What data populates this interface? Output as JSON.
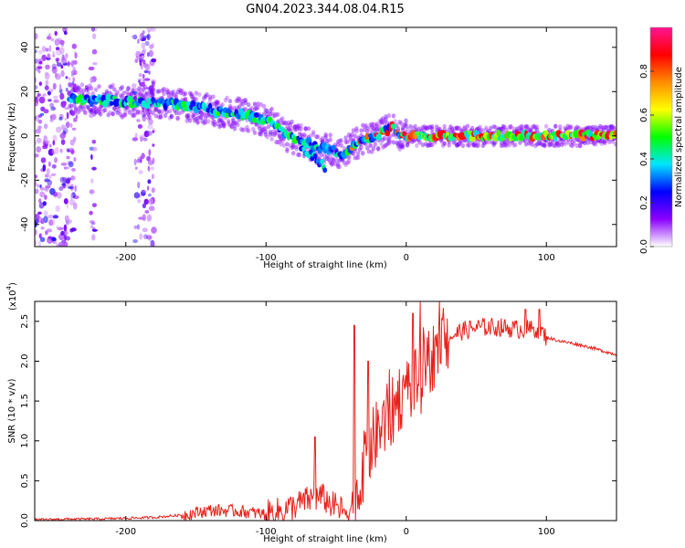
{
  "figure_title": "GN04.2023.344.08.04.R15",
  "chart_data": [
    {
      "type": "heatmap",
      "xlabel": "Height of straight line (km)",
      "ylabel": "Frequency (Hz)",
      "xlim": [
        -265,
        150
      ],
      "ylim": [
        -50,
        49
      ],
      "x_ticks": [
        -200,
        -100,
        0,
        100
      ],
      "x_tick_labels": [
        "-200",
        "-100",
        "0",
        "100"
      ],
      "y_ticks": [
        -40,
        -20,
        0,
        20,
        40
      ],
      "y_tick_labels": [
        "-40",
        "-20",
        "0",
        "20",
        "40"
      ],
      "colorbar": {
        "label": "Normalized spectral amplitude",
        "range": [
          0,
          1
        ],
        "ticks": [
          0.0,
          0.2,
          0.4,
          0.6,
          0.8
        ],
        "tick_labels": [
          "0.0",
          "0.2",
          "0.4",
          "0.6",
          "0.8"
        ],
        "colormap": [
          "#ffffff",
          "#8b00ff",
          "#0000ff",
          "#00e5ff",
          "#00ff00",
          "#ffff00",
          "#ff8c00",
          "#ff0000",
          "#ff1493"
        ]
      },
      "ridge": {
        "x": [
          -240,
          -225,
          -210,
          -195,
          -180,
          -165,
          -150,
          -135,
          -120,
          -105,
          -95,
          -85,
          -75,
          -65,
          -55,
          -45,
          -35,
          -25,
          -15,
          -10,
          -5,
          0,
          20,
          60,
          100,
          150
        ],
        "y": [
          17,
          16,
          16,
          15,
          15,
          14,
          13,
          11,
          10,
          8,
          5,
          0,
          -2,
          -5,
          -6,
          -8,
          -3,
          -1,
          2,
          4,
          1,
          0,
          0,
          0,
          0,
          0
        ],
        "branch_x": [
          -75,
          -65,
          -58
        ],
        "branch_y": [
          -6,
          -10,
          -14
        ]
      },
      "noise_bands_x": [
        [
          -265,
          -235
        ],
        [
          -225,
          -222
        ],
        [
          -195,
          -180
        ]
      ]
    },
    {
      "type": "line",
      "xlabel": "Height of straight line (km)",
      "ylabel": "SNR (10 * v/v)",
      "y_multiplier_label": "(x10",
      "y_multiplier_exponent": "4",
      "y_multiplier_suffix": ")",
      "xlim": [
        -265,
        150
      ],
      "ylim": [
        0,
        2.75
      ],
      "x_ticks": [
        -200,
        -100,
        0,
        100
      ],
      "x_tick_labels": [
        "-200",
        "-100",
        "0",
        "100"
      ],
      "y_ticks": [
        0,
        0.5,
        1.0,
        1.5,
        2.0,
        2.5
      ],
      "y_tick_labels": [
        "0.0",
        "0.5",
        "1.0",
        "1.5",
        "2.0",
        "2.5"
      ],
      "series": [
        {
          "color": "#e8201a",
          "x": [
            -265,
            -240,
            -220,
            -200,
            -180,
            -160,
            -140,
            -120,
            -100,
            -90,
            -80,
            -70,
            -60,
            -55,
            -50,
            -45,
            -40,
            -35,
            -30,
            -25,
            -20,
            -15,
            -10,
            -5,
            0,
            5,
            10,
            15,
            20,
            25,
            30,
            40,
            50,
            60,
            70,
            80,
            90,
            95,
            100,
            110,
            120,
            130,
            140,
            150
          ],
          "y": [
            0.01,
            0.02,
            0.02,
            0.03,
            0.04,
            0.07,
            0.13,
            0.12,
            0.08,
            0.12,
            0.18,
            0.26,
            0.3,
            0.22,
            0.17,
            0.12,
            0.15,
            0.27,
            0.6,
            0.95,
            1.1,
            1.25,
            1.35,
            1.55,
            1.65,
            1.7,
            1.75,
            1.95,
            2.1,
            2.22,
            2.3,
            2.38,
            2.42,
            2.43,
            2.42,
            2.4,
            2.4,
            2.4,
            2.3,
            2.25,
            2.22,
            2.18,
            2.13,
            2.08
          ]
        }
      ],
      "annotations": [
        {
          "x": -65,
          "y": 1.05
        },
        {
          "x": -37,
          "y": 2.45
        },
        {
          "x": -27,
          "y": 2.0
        },
        {
          "x": -12,
          "y": 1.9
        },
        {
          "x": 5,
          "y": 2.6
        },
        {
          "x": 10,
          "y": 2.75
        },
        {
          "x": 15,
          "y": 2.3
        },
        {
          "x": 85,
          "y": 2.65
        },
        {
          "x": 95,
          "y": 2.65
        }
      ]
    }
  ]
}
